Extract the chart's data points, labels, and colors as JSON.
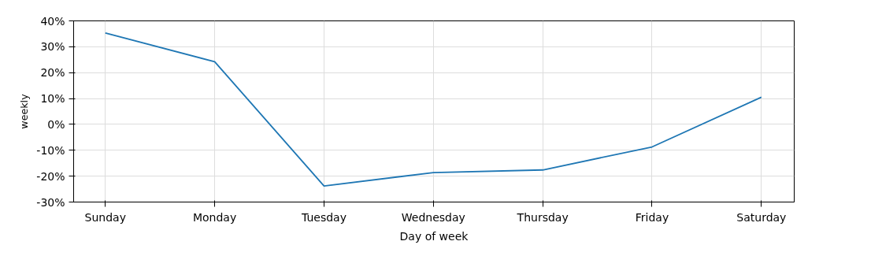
{
  "chart_data": {
    "type": "line",
    "xlabel": "Day of week",
    "ylabel": "weekly",
    "categories": [
      "Sunday",
      "Monday",
      "Tuesday",
      "Wednesday",
      "Thursday",
      "Friday",
      "Saturday"
    ],
    "series": [
      {
        "color": "#1f77b4",
        "values": [
          35.3,
          24.2,
          -23.8,
          -18.6,
          -17.6,
          -8.7,
          10.5
        ]
      }
    ],
    "ylim": [
      -30,
      40
    ],
    "yticks": [
      {
        "value": -30,
        "label": "-30%"
      },
      {
        "value": -20,
        "label": "-20%"
      },
      {
        "value": -10,
        "label": "-10%"
      },
      {
        "value": 0,
        "label": "0%"
      },
      {
        "value": 10,
        "label": "10%"
      },
      {
        "value": 20,
        "label": "20%"
      },
      {
        "value": 30,
        "label": "30%"
      },
      {
        "value": 40,
        "label": "40%"
      }
    ],
    "grid": true,
    "marker": "none",
    "line_style": "solid"
  }
}
